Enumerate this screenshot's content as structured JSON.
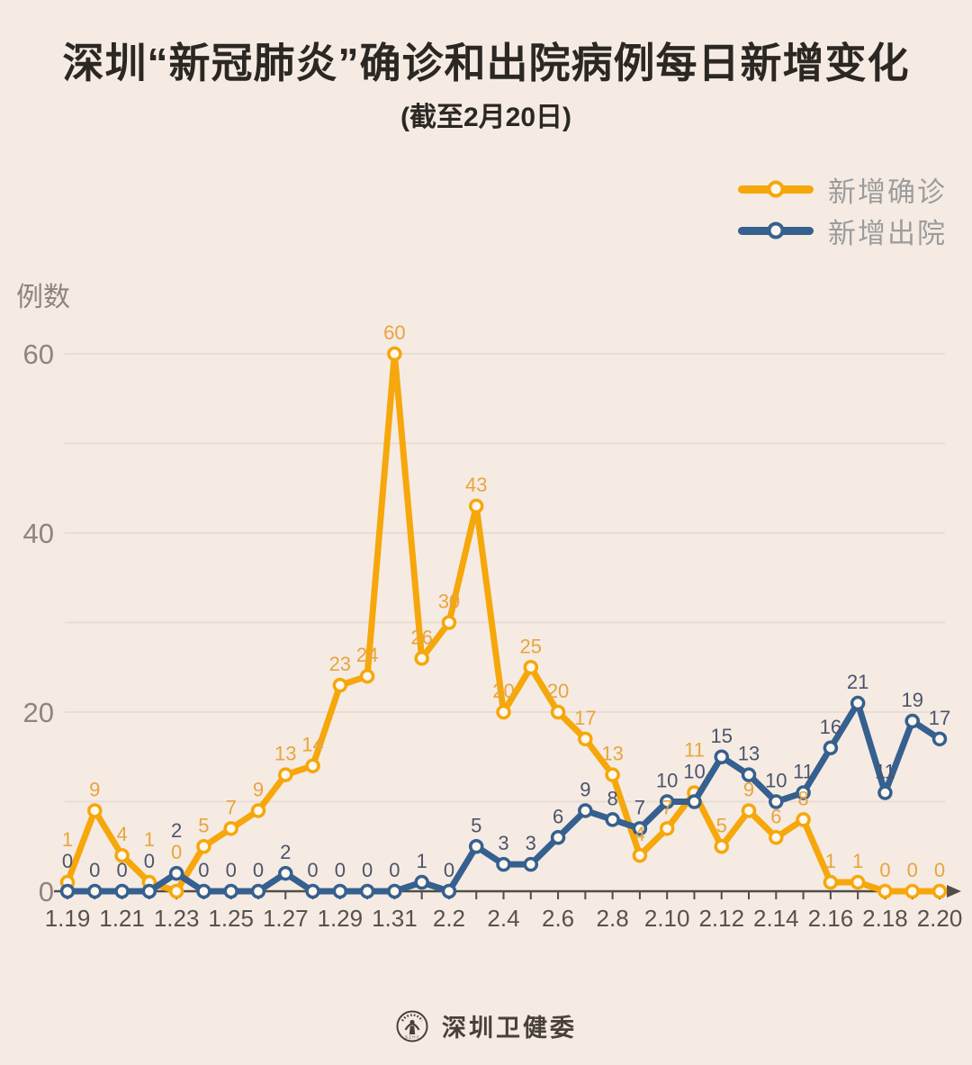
{
  "title": "深圳“新冠肺炎”确诊和出院病例每日新增变化",
  "subtitle": "(截至2月20日)",
  "legend": [
    {
      "label": "新增确诊",
      "color": "#f6a70b"
    },
    {
      "label": "新增出院",
      "color": "#35608f"
    }
  ],
  "y_axis": {
    "label": "例数",
    "ticks": [
      0,
      20,
      40,
      60
    ]
  },
  "footer": {
    "source": "深圳卫健委",
    "seal_text": "S Z H C"
  },
  "colors": {
    "background": "#f5ebe3",
    "grid": "#e9ded5",
    "axis": "#524d47",
    "x_tick_label": "#57524c",
    "y_tick_label": "#90857d",
    "marker_fill": "#fff7ed",
    "confirmed_line": "#f6a70b",
    "confirmed_label": "#e9a43d",
    "discharged_line": "#35608f",
    "discharged_label": "#4b546b"
  },
  "chart_data": {
    "type": "line",
    "x": [
      "1.19",
      "1.20",
      "1.21",
      "1.22",
      "1.23",
      "1.24",
      "1.25",
      "1.26",
      "1.27",
      "1.28",
      "1.29",
      "1.30",
      "1.31",
      "2.1",
      "2.2",
      "2.3",
      "2.4",
      "2.5",
      "2.6",
      "2.7",
      "2.8",
      "2.9",
      "2.10",
      "2.11",
      "2.12",
      "2.13",
      "2.14",
      "2.15",
      "2.16",
      "2.17",
      "2.18",
      "2.19",
      "2.20"
    ],
    "x_label_every": 2,
    "series": [
      {
        "name": "新增确诊",
        "values": [
          1,
          9,
          4,
          1,
          0,
          5,
          7,
          9,
          13,
          14,
          23,
          24,
          60,
          26,
          30,
          43,
          20,
          25,
          20,
          17,
          13,
          4,
          7,
          11,
          5,
          9,
          6,
          8,
          1,
          1,
          0,
          0,
          0
        ]
      },
      {
        "name": "新增出院",
        "values": [
          0,
          0,
          0,
          0,
          2,
          0,
          0,
          0,
          2,
          0,
          0,
          0,
          0,
          1,
          0,
          5,
          3,
          3,
          6,
          9,
          8,
          7,
          10,
          10,
          15,
          13,
          10,
          11,
          16,
          21,
          11,
          19,
          17
        ]
      }
    ],
    "ylim": [
      0,
      60
    ],
    "grid_step": 10,
    "legend_position": "top-right",
    "point_labels": true
  }
}
